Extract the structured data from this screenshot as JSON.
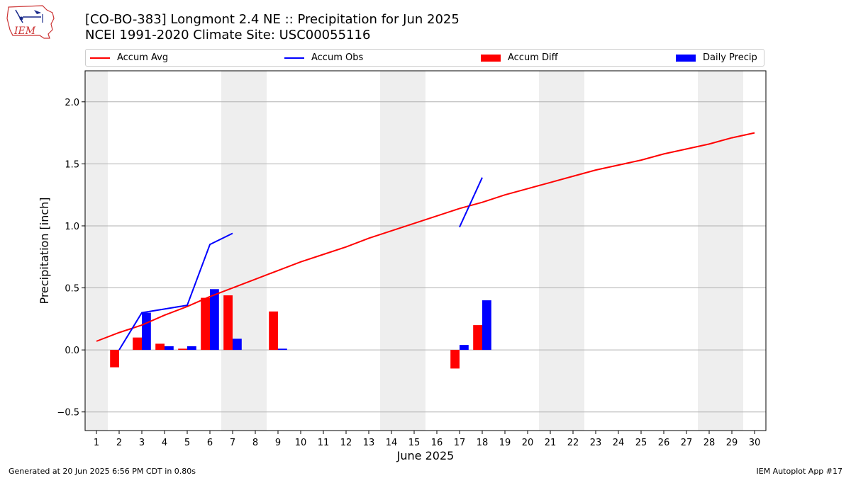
{
  "header": {
    "title_line1": "[CO-BO-383] Longmont 2.4 NE :: Precipitation for Jun 2025",
    "title_line2": "NCEI 1991-2020 Climate Site: USC00055116",
    "logo_text": "IEM"
  },
  "footer": {
    "generated": "Generated at 20 Jun 2025 6:56 PM CDT in 0.80s",
    "app": "IEM Autoplot App #17"
  },
  "legend": {
    "placement": "top, full width",
    "items": [
      {
        "label": "Accum Avg",
        "kind": "line",
        "color": "#ff0000"
      },
      {
        "label": "Accum Obs",
        "kind": "line",
        "color": "#0000ff"
      },
      {
        "label": "Accum Diff",
        "kind": "bar",
        "color": "#ff0000"
      },
      {
        "label": "Daily Precip",
        "kind": "bar",
        "color": "#0000ff"
      }
    ]
  },
  "chart_data": {
    "type": "bar",
    "xlabel": "June 2025",
    "ylabel": "Precipitation [inch]",
    "xlim": [
      0.5,
      30.5
    ],
    "ylim": [
      -0.65,
      2.25
    ],
    "yticks": [
      -0.5,
      0.0,
      0.5,
      1.0,
      1.5,
      2.0
    ],
    "ytick_labels": [
      "−0.5",
      "0.0",
      "0.5",
      "1.0",
      "1.5",
      "2.0"
    ],
    "xticks": [
      1,
      2,
      3,
      4,
      5,
      6,
      7,
      8,
      9,
      10,
      11,
      12,
      13,
      14,
      15,
      16,
      17,
      18,
      19,
      20,
      21,
      22,
      23,
      24,
      25,
      26,
      27,
      28,
      29,
      30
    ],
    "grid": "horizontal",
    "weekend_shading": [
      [
        0.5,
        1.5
      ],
      [
        6.5,
        8.5
      ],
      [
        13.5,
        15.5
      ],
      [
        20.5,
        22.5
      ],
      [
        27.5,
        29.5
      ]
    ],
    "shading_color": "#eeeeee",
    "series": [
      {
        "name": "Accum Avg",
        "kind": "line",
        "color": "#ff0000",
        "x": [
          1,
          2,
          3,
          4,
          5,
          6,
          7,
          8,
          9,
          10,
          11,
          12,
          13,
          14,
          15,
          16,
          17,
          18,
          19,
          20,
          21,
          22,
          23,
          24,
          25,
          26,
          27,
          28,
          29,
          30
        ],
        "values": [
          0.07,
          0.14,
          0.2,
          0.28,
          0.35,
          0.43,
          0.5,
          0.57,
          0.64,
          0.71,
          0.77,
          0.83,
          0.9,
          0.96,
          1.02,
          1.08,
          1.14,
          1.19,
          1.25,
          1.3,
          1.35,
          1.4,
          1.45,
          1.49,
          1.53,
          1.58,
          1.62,
          1.66,
          1.71,
          1.75
        ]
      },
      {
        "name": "Accum Obs",
        "kind": "line",
        "color": "#0000ff",
        "segments": [
          {
            "x": [
              2,
              3,
              4,
              5,
              6,
              7
            ],
            "values": [
              0.0,
              0.3,
              0.33,
              0.36,
              0.85,
              0.94
            ]
          },
          {
            "x": [
              17,
              18
            ],
            "values": [
              0.99,
              1.39
            ]
          }
        ]
      },
      {
        "name": "Accum Diff",
        "kind": "bar",
        "color": "#ff0000",
        "x": [
          2,
          3,
          4,
          5,
          6,
          7,
          9,
          17,
          18
        ],
        "values": [
          -0.14,
          0.1,
          0.05,
          0.01,
          0.42,
          0.44,
          0.31,
          -0.15,
          0.2
        ]
      },
      {
        "name": "Daily Precip",
        "kind": "bar",
        "color": "#0000ff",
        "x": [
          3,
          4,
          5,
          6,
          7,
          9,
          17,
          18
        ],
        "values": [
          0.3,
          0.03,
          0.03,
          0.49,
          0.09,
          0.01,
          0.04,
          0.4
        ]
      }
    ]
  }
}
